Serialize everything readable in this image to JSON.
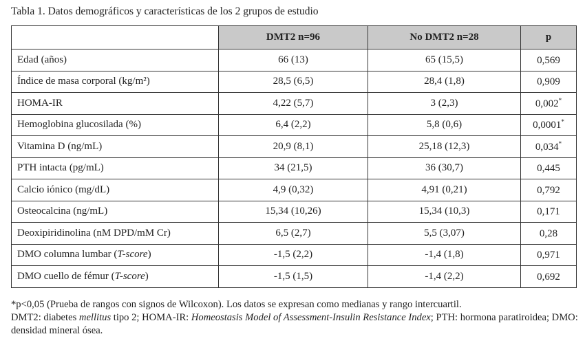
{
  "title": "Tabla 1. Datos demográficos y características de los 2 grupos de estudio",
  "headers": [
    "",
    "DMT2 n=96",
    "No DMT2 n=28",
    "p"
  ],
  "rows": [
    {
      "label": "Edad (años)",
      "dmt2": "66 (13)",
      "no_dmt2": "65 (15,5)",
      "p": "0,569",
      "sig": ""
    },
    {
      "label": "Índice de masa corporal (kg/m²)",
      "dmt2": "28,5 (6,5)",
      "no_dmt2": "28,4 (1,8)",
      "p": "0,909",
      "sig": ""
    },
    {
      "label": "HOMA-IR",
      "dmt2": "4,22 (5,7)",
      "no_dmt2": "3 (2,3)",
      "p": "0,002",
      "sig": "*"
    },
    {
      "label": "Hemoglobina glucosilada (%)",
      "dmt2": "6,4 (2,2)",
      "no_dmt2": "5,8 (0,6)",
      "p": "0,0001",
      "sig": "*"
    },
    {
      "label": "Vitamina D (ng/mL)",
      "dmt2": "20,9 (8,1)",
      "no_dmt2": "25,18 (12,3)",
      "p": "0,034",
      "sig": "*"
    },
    {
      "label": "PTH intacta (pg/mL)",
      "dmt2": "34 (21,5)",
      "no_dmt2": "36 (30,7)",
      "p": "0,445",
      "sig": ""
    },
    {
      "label": "Calcio iónico (mg/dL)",
      "dmt2": "4,9 (0,32)",
      "no_dmt2": "4,91 (0,21)",
      "p": "0,792",
      "sig": ""
    },
    {
      "label": "Osteocalcina (ng/mL)",
      "dmt2": "15,34 (10,26)",
      "no_dmt2": "15,34 (10,3)",
      "p": "0,171",
      "sig": ""
    },
    {
      "label": "Deoxipiridinolina (nM DPD/mM Cr)",
      "dmt2": "6,5 (2,7)",
      "no_dmt2": "5,5 (3,07)",
      "p": "0,28",
      "sig": ""
    },
    {
      "label": "DMO columna lumbar (",
      "label_it": "T-score",
      "label_end": ")",
      "dmt2": "-1,5 (2,2)",
      "no_dmt2": "-1,4 (1,8)",
      "p": "0,971",
      "sig": ""
    },
    {
      "label": "DMO cuello de fémur (",
      "label_it": "T-score",
      "label_end": ")",
      "dmt2": "-1,5 (1,5)",
      "no_dmt2": "-1,4 (2,2)",
      "p": "0,692",
      "sig": ""
    }
  ],
  "footnote": {
    "line1": "*p<0,05 (Prueba de rangos con signos de Wilcoxon). Los datos se expresan como medianas y rango intercuartil.",
    "p1": "DMT2: diabetes ",
    "i1": "mellitus",
    "p2": " tipo 2; HOMA-IR: ",
    "i2": "Homeostasis Model of Assessment-Insulin Resistance Index",
    "p3": "; PTH: hormona paratiroidea; DMO: densidad mineral ósea."
  }
}
